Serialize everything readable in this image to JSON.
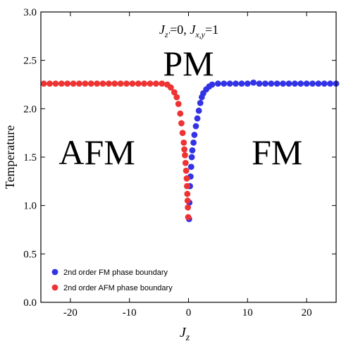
{
  "chart_data": {
    "type": "scatter",
    "title": {
      "j_sym": "J",
      "zp_sub": "z′",
      "eq0": "=0, ",
      "xy_sub": "x,y",
      "eq1": "=1"
    },
    "xlabel": {
      "sym": "J",
      "sub": "z"
    },
    "ylabel": "Temperature",
    "xlim": [
      -25,
      25
    ],
    "ylim": [
      0,
      3.0
    ],
    "xticks": [
      -20,
      -10,
      0,
      10,
      20
    ],
    "xtick_labels": [
      "-20",
      "-10",
      "0",
      "10",
      "20"
    ],
    "yticks": [
      0,
      0.5,
      1.0,
      1.5,
      2.0,
      2.5,
      3.0
    ],
    "ytick_labels": [
      "0.0",
      "0.5",
      "1.0",
      "1.5",
      "2.0",
      "2.5",
      "3.0"
    ],
    "grid": false,
    "legend_position": "lower-left",
    "regions": [
      {
        "label": "PM",
        "x": 0,
        "y": 2.47
      },
      {
        "label": "AFM",
        "x": -15.5,
        "y": 1.55
      },
      {
        "label": "FM",
        "x": 15,
        "y": 1.55
      }
    ],
    "series": [
      {
        "name": "2nd order FM phase boundary",
        "color": "#3333e6",
        "points": [
          [
            0.1,
            0.86
          ],
          [
            0.15,
            1.03
          ],
          [
            0.25,
            1.2
          ],
          [
            0.35,
            1.3
          ],
          [
            0.45,
            1.4
          ],
          [
            0.55,
            1.5
          ],
          [
            0.65,
            1.57
          ],
          [
            0.85,
            1.65
          ],
          [
            1.0,
            1.73
          ],
          [
            1.25,
            1.82
          ],
          [
            1.5,
            1.9
          ],
          [
            1.75,
            1.98
          ],
          [
            2.0,
            2.06
          ],
          [
            2.25,
            2.12
          ],
          [
            2.5,
            2.16
          ],
          [
            3.0,
            2.2
          ],
          [
            3.5,
            2.23
          ],
          [
            4.0,
            2.25
          ],
          [
            5.0,
            2.26
          ],
          [
            6.0,
            2.26
          ],
          [
            7.0,
            2.26
          ],
          [
            8.0,
            2.26
          ],
          [
            9.0,
            2.26
          ],
          [
            10.0,
            2.26
          ],
          [
            11.0,
            2.27
          ],
          [
            12.0,
            2.26
          ],
          [
            13.0,
            2.26
          ],
          [
            14.0,
            2.26
          ],
          [
            15.0,
            2.26
          ],
          [
            16.0,
            2.26
          ],
          [
            17.0,
            2.26
          ],
          [
            18.0,
            2.26
          ],
          [
            19.0,
            2.26
          ],
          [
            20.0,
            2.26
          ],
          [
            21.0,
            2.26
          ],
          [
            22.0,
            2.26
          ],
          [
            23.0,
            2.26
          ],
          [
            24.0,
            2.26
          ],
          [
            25.0,
            2.26
          ]
        ]
      },
      {
        "name": "2nd order AFM phase boundary",
        "color": "#ee3333",
        "points": [
          [
            -0.05,
            0.88
          ],
          [
            -0.1,
            0.98
          ],
          [
            -0.15,
            1.05
          ],
          [
            -0.2,
            1.12
          ],
          [
            -0.25,
            1.2
          ],
          [
            -0.3,
            1.28
          ],
          [
            -0.4,
            1.36
          ],
          [
            -0.5,
            1.44
          ],
          [
            -0.6,
            1.52
          ],
          [
            -0.7,
            1.58
          ],
          [
            -0.8,
            1.65
          ],
          [
            -1.0,
            1.75
          ],
          [
            -1.2,
            1.85
          ],
          [
            -1.4,
            1.95
          ],
          [
            -1.7,
            2.05
          ],
          [
            -2.0,
            2.12
          ],
          [
            -2.4,
            2.17
          ],
          [
            -3.0,
            2.22
          ],
          [
            -3.6,
            2.25
          ],
          [
            -4.5,
            2.26
          ],
          [
            -5.5,
            2.26
          ],
          [
            -6.5,
            2.26
          ],
          [
            -7.5,
            2.26
          ],
          [
            -8.5,
            2.26
          ],
          [
            -9.5,
            2.26
          ],
          [
            -10.5,
            2.26
          ],
          [
            -11.5,
            2.26
          ],
          [
            -12.5,
            2.26
          ],
          [
            -13.5,
            2.26
          ],
          [
            -14.5,
            2.26
          ],
          [
            -15.5,
            2.26
          ],
          [
            -16.5,
            2.26
          ],
          [
            -17.5,
            2.26
          ],
          [
            -18.5,
            2.26
          ],
          [
            -19.5,
            2.26
          ],
          [
            -20.5,
            2.26
          ],
          [
            -21.5,
            2.26
          ],
          [
            -22.5,
            2.26
          ],
          [
            -23.5,
            2.26
          ],
          [
            -24.5,
            2.26
          ]
        ]
      }
    ]
  }
}
